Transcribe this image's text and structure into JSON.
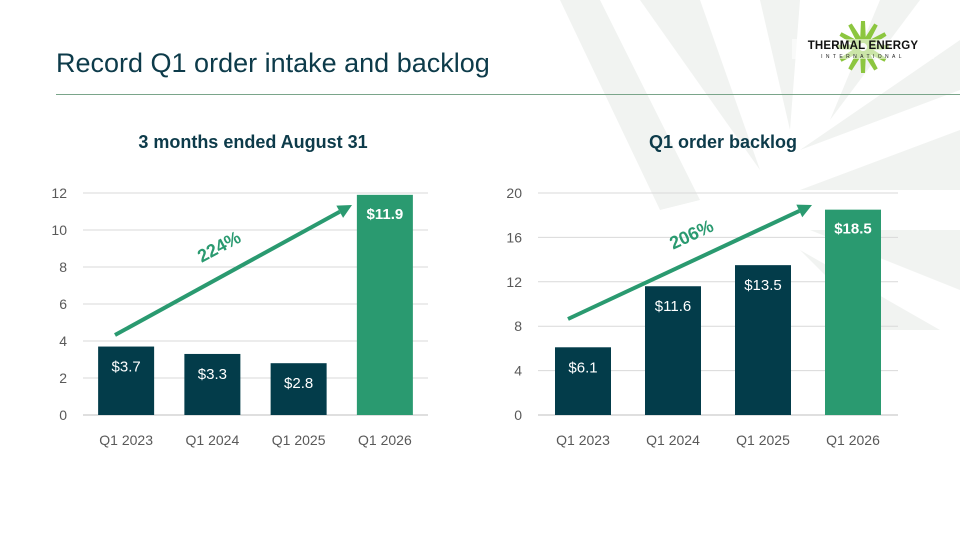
{
  "slide": {
    "title": "Record Q1 order intake and backlog",
    "logo": {
      "main": "THERMAL ENERGY",
      "sub": "INTERNATIONAL"
    }
  },
  "colors": {
    "dark": "#033c4a",
    "green": "#2a9a70",
    "title": "#0d3b4a",
    "grid": "#d9d9d9",
    "axis": "#595959"
  },
  "chart_data": [
    {
      "type": "bar",
      "title": "3 months ended August 31",
      "categories": [
        "Q1 2023",
        "Q1 2024",
        "Q1 2025",
        "Q1 2026"
      ],
      "values": [
        3.7,
        3.3,
        2.8,
        11.9
      ],
      "data_labels": [
        "$3.7",
        "$3.3",
        "$2.8",
        "$11.9"
      ],
      "highlight_index": 3,
      "ylim": [
        0,
        12
      ],
      "yticks": [
        0,
        2,
        4,
        6,
        8,
        10,
        12
      ],
      "xlabel": "",
      "ylabel": "",
      "grid": true,
      "annotation": {
        "text": "224%",
        "arrow": "trend arrow from Q1 2023 to Q1 2026"
      }
    },
    {
      "type": "bar",
      "title": "Q1 order backlog",
      "categories": [
        "Q1 2023",
        "Q1 2024",
        "Q1 2025",
        "Q1 2026"
      ],
      "values": [
        6.1,
        11.6,
        13.5,
        18.5
      ],
      "data_labels": [
        "$6.1",
        "$11.6",
        "$13.5",
        "$18.5"
      ],
      "highlight_index": 3,
      "ylim": [
        0,
        20
      ],
      "yticks": [
        0,
        4,
        8,
        12,
        16,
        20
      ],
      "xlabel": "",
      "ylabel": "",
      "grid": true,
      "annotation": {
        "text": "206%",
        "arrow": "trend arrow from Q1 2023 to Q1 2026"
      }
    }
  ]
}
